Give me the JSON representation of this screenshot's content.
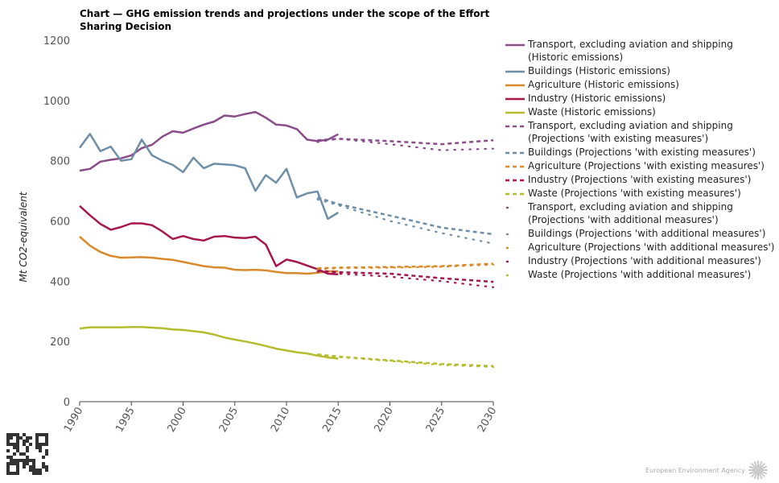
{
  "chart_data": {
    "type": "line",
    "title": "Chart — GHG emission trends and projections under the scope of the Effort Sharing Decision",
    "ylabel": "Mt CO2-equivalent",
    "xlabel": "",
    "xlim": [
      1990,
      2030
    ],
    "ylim": [
      0,
      1200
    ],
    "yticks": [
      0,
      200,
      400,
      600,
      800,
      1000,
      1200
    ],
    "xticks": [
      1990,
      1995,
      2000,
      2005,
      2010,
      2015,
      2020,
      2025,
      2030
    ],
    "grid": false,
    "legend_position": "right",
    "series": [
      {
        "name": "Transport, excluding aviation and shipping (Historic emissions)",
        "color": "#8b4c8c",
        "style": "solid",
        "x": [
          1990,
          1991,
          1992,
          1993,
          1994,
          1995,
          1996,
          1997,
          1998,
          1999,
          2000,
          2001,
          2002,
          2003,
          2004,
          2005,
          2006,
          2007,
          2008,
          2009,
          2010,
          2011,
          2012,
          2013,
          2014,
          2015
        ],
        "y": [
          767,
          773,
          797,
          803,
          808,
          818,
          842,
          853,
          880,
          898,
          893,
          907,
          920,
          930,
          950,
          947,
          955,
          962,
          943,
          920,
          917,
          905,
          870,
          865,
          870,
          888
        ]
      },
      {
        "name": "Buildings (Historic emissions)",
        "color": "#6f8ea8",
        "style": "solid",
        "x": [
          1990,
          1991,
          1992,
          1993,
          1994,
          1995,
          1996,
          1997,
          1998,
          1999,
          2000,
          2001,
          2002,
          2003,
          2004,
          2005,
          2006,
          2007,
          2008,
          2009,
          2010,
          2011,
          2012,
          2013,
          2014,
          2015
        ],
        "y": [
          843,
          889,
          832,
          847,
          800,
          805,
          870,
          818,
          800,
          786,
          762,
          810,
          775,
          790,
          788,
          785,
          775,
          700,
          752,
          727,
          773,
          678,
          692,
          698,
          607,
          628
        ]
      },
      {
        "name": "Agriculture (Historic emissions)",
        "color": "#d98a2b",
        "style": "solid",
        "x": [
          1990,
          1991,
          1992,
          1993,
          1994,
          1995,
          1996,
          1997,
          1998,
          1999,
          2000,
          2001,
          2002,
          2003,
          2004,
          2005,
          2006,
          2007,
          2008,
          2009,
          2010,
          2011,
          2012,
          2013,
          2014,
          2015
        ],
        "y": [
          548,
          518,
          497,
          484,
          478,
          479,
          480,
          478,
          474,
          471,
          464,
          457,
          450,
          446,
          445,
          438,
          437,
          438,
          436,
          431,
          427,
          427,
          425,
          428,
          433,
          433
        ]
      },
      {
        "name": "Industry (Historic emissions)",
        "color": "#a5174d",
        "style": "solid",
        "x": [
          1990,
          1991,
          1992,
          1993,
          1994,
          1995,
          1996,
          1997,
          1998,
          1999,
          2000,
          2001,
          2002,
          2003,
          2004,
          2005,
          2006,
          2007,
          2008,
          2009,
          2010,
          2011,
          2012,
          2013,
          2014,
          2015
        ],
        "y": [
          650,
          619,
          590,
          571,
          580,
          592,
          592,
          586,
          565,
          540,
          550,
          540,
          535,
          548,
          550,
          545,
          543,
          548,
          522,
          450,
          472,
          464,
          452,
          440,
          425,
          423
        ]
      },
      {
        "name": "Waste (Historic emissions)",
        "color": "#b5bd2e",
        "style": "solid",
        "x": [
          1990,
          1991,
          1992,
          1993,
          1994,
          1995,
          1996,
          1997,
          1998,
          1999,
          2000,
          2001,
          2002,
          2003,
          2004,
          2005,
          2006,
          2007,
          2008,
          2009,
          2010,
          2011,
          2012,
          2013,
          2014,
          2015
        ],
        "y": [
          243,
          247,
          247,
          247,
          247,
          248,
          248,
          246,
          244,
          240,
          238,
          234,
          230,
          223,
          213,
          206,
          200,
          193,
          185,
          176,
          170,
          164,
          160,
          153,
          147,
          143
        ]
      },
      {
        "name": "Transport, excluding aviation and shipping (Projections 'with existing measures')",
        "color": "#8b4c8c",
        "style": "dashed",
        "x": [
          2013,
          2015,
          2020,
          2025,
          2030
        ],
        "y": [
          868,
          873,
          865,
          855,
          868
        ]
      },
      {
        "name": "Buildings (Projections 'with existing measures')",
        "color": "#6f8ea8",
        "style": "dashed",
        "x": [
          2013,
          2015,
          2020,
          2025,
          2030
        ],
        "y": [
          678,
          656,
          618,
          578,
          556
        ]
      },
      {
        "name": "Agriculture (Projections 'with existing measures')",
        "color": "#d98a2b",
        "style": "dashed",
        "x": [
          2013,
          2015,
          2020,
          2025,
          2030
        ],
        "y": [
          443,
          445,
          447,
          450,
          458
        ]
      },
      {
        "name": "Industry (Projections 'with existing measures')",
        "color": "#a5174d",
        "style": "dashed",
        "x": [
          2013,
          2015,
          2020,
          2025,
          2030
        ],
        "y": [
          435,
          430,
          425,
          410,
          398
        ]
      },
      {
        "name": "Waste (Projections 'with existing measures')",
        "color": "#b5bd2e",
        "style": "dashed",
        "x": [
          2013,
          2015,
          2020,
          2025,
          2030
        ],
        "y": [
          157,
          150,
          137,
          125,
          118
        ]
      },
      {
        "name": "Transport, excluding aviation and shipping (Projections 'with additional measures')",
        "color": "#8b4c8c",
        "style": "dotted",
        "x": [
          2013,
          2015,
          2020,
          2025,
          2030
        ],
        "y": [
          862,
          873,
          855,
          835,
          840
        ]
      },
      {
        "name": "Buildings (Projections 'with additional measures')",
        "color": "#6f8ea8",
        "style": "dotted",
        "x": [
          2013,
          2015,
          2020,
          2025,
          2030
        ],
        "y": [
          672,
          652,
          600,
          560,
          525
        ]
      },
      {
        "name": "Agriculture (Projections 'with additional measures')",
        "color": "#d98a2b",
        "style": "dotted",
        "x": [
          2013,
          2015,
          2020,
          2025,
          2030
        ],
        "y": [
          440,
          443,
          445,
          448,
          455
        ]
      },
      {
        "name": "Industry (Projections 'with additional measures')",
        "color": "#a5174d",
        "style": "dotted",
        "x": [
          2013,
          2015,
          2020,
          2025,
          2030
        ],
        "y": [
          432,
          425,
          415,
          400,
          380
        ]
      },
      {
        "name": "Waste (Projections 'with additional measures')",
        "color": "#b5bd2e",
        "style": "dotted",
        "x": [
          2013,
          2015,
          2020,
          2025,
          2030
        ],
        "y": [
          155,
          148,
          135,
          122,
          115
        ]
      }
    ]
  },
  "legend": [
    {
      "text": "Transport, excluding aviation and shipping (Historic emissions)",
      "color": "#8b4c8c",
      "style": "solid"
    },
    {
      "text": "Buildings (Historic emissions)",
      "color": "#6f8ea8",
      "style": "solid"
    },
    {
      "text": "Agriculture (Historic emissions)",
      "color": "#d98a2b",
      "style": "solid"
    },
    {
      "text": "Industry (Historic emissions)",
      "color": "#a5174d",
      "style": "solid"
    },
    {
      "text": "Waste (Historic emissions)",
      "color": "#b5bd2e",
      "style": "solid"
    },
    {
      "text": "Transport, excluding aviation and shipping (Projections 'with existing measures')",
      "color": "#8b4c8c",
      "style": "dashed"
    },
    {
      "text": "Buildings (Projections 'with existing measures')",
      "color": "#6f8ea8",
      "style": "dashed"
    },
    {
      "text": "Agriculture (Projections 'with existing measures')",
      "color": "#d98a2b",
      "style": "dashed"
    },
    {
      "text": "Industry (Projections 'with existing measures')",
      "color": "#a5174d",
      "style": "dashed"
    },
    {
      "text": "Waste (Projections 'with existing measures')",
      "color": "#b5bd2e",
      "style": "dashed"
    },
    {
      "text": "Transport, excluding aviation and shipping (Projections 'with additional measures')",
      "color": "#8b4c8c",
      "style": "dotted"
    },
    {
      "text": "Buildings (Projections 'with additional measures')",
      "color": "#6f8ea8",
      "style": "dotted"
    },
    {
      "text": "Agriculture (Projections 'with additional measures')",
      "color": "#d98a2b",
      "style": "dotted"
    },
    {
      "text": "Industry (Projections 'with additional measures')",
      "color": "#a5174d",
      "style": "dotted"
    },
    {
      "text": "Waste (Projections 'with additional measures')",
      "color": "#b5bd2e",
      "style": "dotted"
    }
  ],
  "footer": {
    "agency": "European Environment Agency",
    "logo_icon": "eea-sun-icon",
    "qr_icon": "qr-code-icon"
  }
}
